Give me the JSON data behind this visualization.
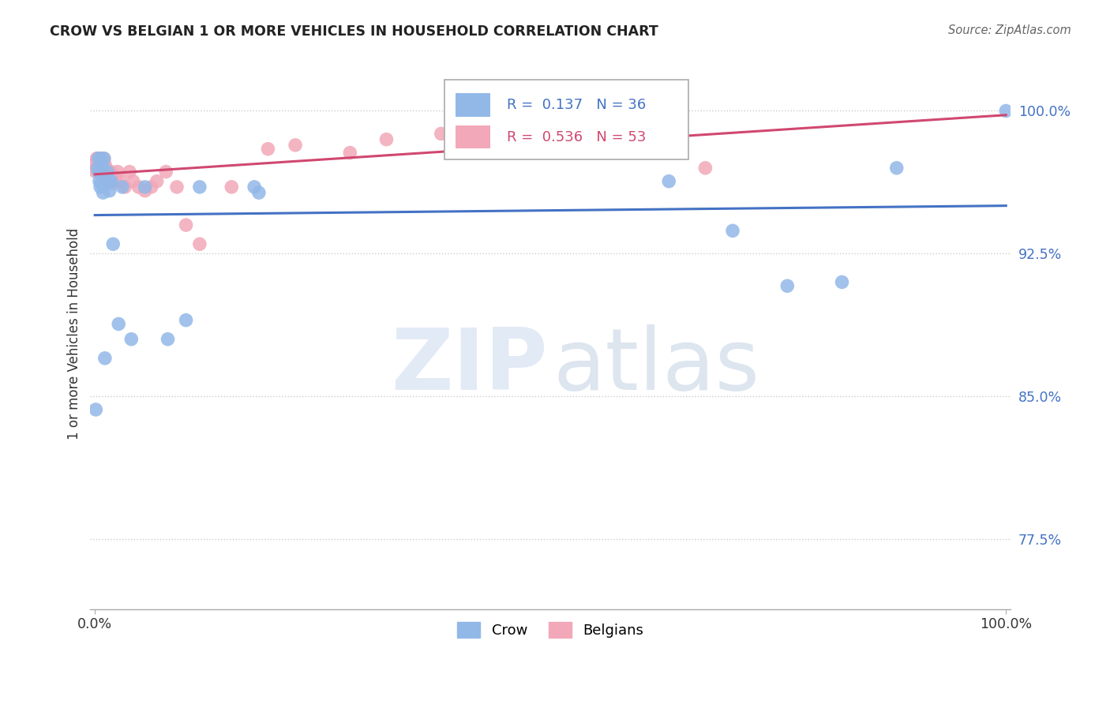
{
  "title": "CROW VS BELGIAN 1 OR MORE VEHICLES IN HOUSEHOLD CORRELATION CHART",
  "source": "Source: ZipAtlas.com",
  "ylabel": "1 or more Vehicles in Household",
  "xlim": [
    -0.005,
    1.005
  ],
  "ylim": [
    0.738,
    1.028
  ],
  "yticks": [
    0.775,
    0.85,
    0.925,
    1.0
  ],
  "ytick_labels": [
    "77.5%",
    "85.0%",
    "92.5%",
    "100.0%"
  ],
  "crow_R": 0.137,
  "crow_N": 36,
  "belgian_R": 0.536,
  "belgian_N": 53,
  "crow_color": "#92b8e8",
  "belgian_color": "#f2a8b8",
  "crow_line_color": "#4472c4",
  "belgian_line_color": "#d04870",
  "crow_x": [
    0.001,
    0.003,
    0.004,
    0.004,
    0.005,
    0.006,
    0.006,
    0.007,
    0.007,
    0.008,
    0.009,
    0.009,
    0.01,
    0.011,
    0.012,
    0.013,
    0.014,
    0.016,
    0.016,
    0.018,
    0.02,
    0.026,
    0.03,
    0.04,
    0.055,
    0.08,
    0.1,
    0.115,
    0.175,
    0.18,
    0.63,
    0.7,
    0.76,
    0.82,
    0.88,
    1.0
  ],
  "crow_y": [
    0.843,
    0.97,
    0.975,
    0.968,
    0.963,
    0.975,
    0.96,
    0.968,
    0.962,
    0.972,
    0.968,
    0.957,
    0.975,
    0.87,
    0.963,
    0.962,
    0.968,
    0.963,
    0.958,
    0.963,
    0.93,
    0.888,
    0.96,
    0.88,
    0.96,
    0.88,
    0.89,
    0.96,
    0.96,
    0.957,
    0.963,
    0.937,
    0.908,
    0.91,
    0.97,
    1.0
  ],
  "belgian_x": [
    0.001,
    0.001,
    0.002,
    0.002,
    0.003,
    0.003,
    0.004,
    0.004,
    0.005,
    0.005,
    0.006,
    0.006,
    0.007,
    0.007,
    0.008,
    0.008,
    0.009,
    0.009,
    0.01,
    0.01,
    0.011,
    0.012,
    0.013,
    0.014,
    0.015,
    0.016,
    0.018,
    0.02,
    0.022,
    0.025,
    0.028,
    0.033,
    0.038,
    0.042,
    0.048,
    0.055,
    0.062,
    0.068,
    0.078,
    0.09,
    0.1,
    0.115,
    0.15,
    0.19,
    0.22,
    0.28,
    0.32,
    0.38,
    0.43,
    0.47,
    0.56,
    0.63,
    0.67
  ],
  "belgian_y": [
    0.972,
    0.968,
    0.975,
    0.97,
    0.975,
    0.97,
    0.975,
    0.968,
    0.975,
    0.97,
    0.975,
    0.97,
    0.975,
    0.968,
    0.975,
    0.97,
    0.972,
    0.968,
    0.975,
    0.968,
    0.972,
    0.97,
    0.968,
    0.965,
    0.968,
    0.963,
    0.968,
    0.962,
    0.965,
    0.968,
    0.963,
    0.96,
    0.968,
    0.963,
    0.96,
    0.958,
    0.96,
    0.963,
    0.968,
    0.96,
    0.94,
    0.93,
    0.96,
    0.98,
    0.982,
    0.978,
    0.985,
    0.988,
    0.992,
    0.99,
    0.988,
    0.99,
    0.97
  ]
}
